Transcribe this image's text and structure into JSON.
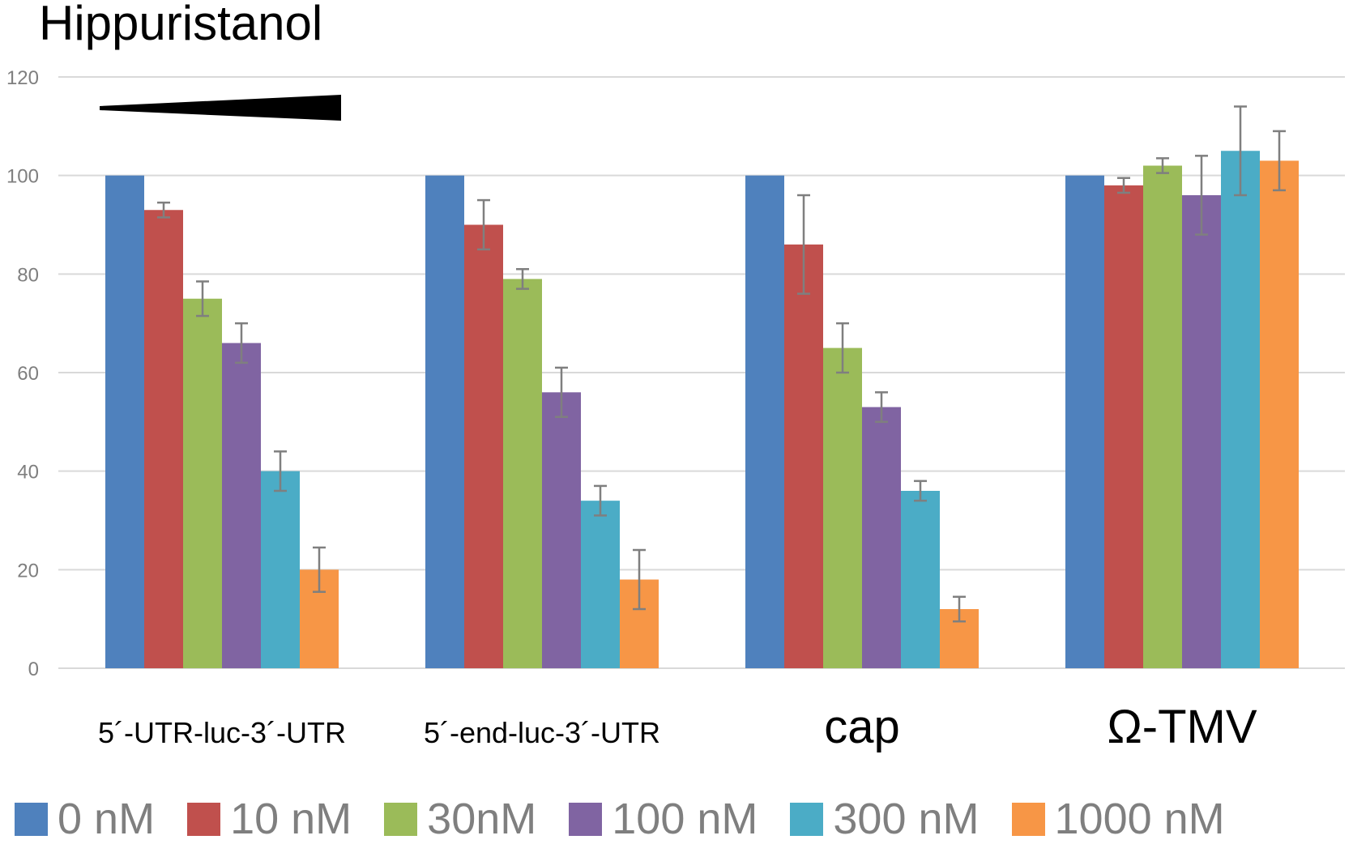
{
  "chart_data": {
    "type": "bar",
    "title": "Hippuristanol",
    "categories": [
      "5´-UTR-luc-3´-UTR",
      "5´-end-luc-3´-UTR",
      "cap",
      "Ω-TMV"
    ],
    "ylim": [
      0,
      120
    ],
    "yticks": [
      0,
      20,
      40,
      60,
      80,
      100,
      120
    ],
    "grid": true,
    "legend_position": "bottom",
    "series": [
      {
        "name": "0 nM",
        "color": "#4f81bd",
        "values": [
          100,
          100,
          100,
          100
        ],
        "errors": [
          null,
          null,
          null,
          null
        ]
      },
      {
        "name": "10 nM",
        "color": "#c0504d",
        "values": [
          93,
          90,
          86,
          98
        ],
        "errors": [
          1.5,
          5,
          10,
          1.5
        ]
      },
      {
        "name": "30nM",
        "color": "#9bbb59",
        "values": [
          75,
          79,
          65,
          102
        ],
        "errors": [
          3.5,
          2,
          5,
          1.5
        ]
      },
      {
        "name": "100 nM",
        "color": "#8064a2",
        "values": [
          66,
          56,
          53,
          96
        ],
        "errors": [
          4,
          5,
          3,
          8
        ]
      },
      {
        "name": "300 nM",
        "color": "#4bacc6",
        "values": [
          40,
          34,
          36,
          105
        ],
        "errors": [
          4,
          3,
          2,
          9
        ]
      },
      {
        "name": "1000 nM",
        "color": "#f79646",
        "values": [
          20,
          18,
          12,
          103
        ],
        "errors": [
          4.5,
          6,
          2.5,
          6
        ]
      }
    ],
    "annotation": "concentration wedge (increasing)"
  }
}
